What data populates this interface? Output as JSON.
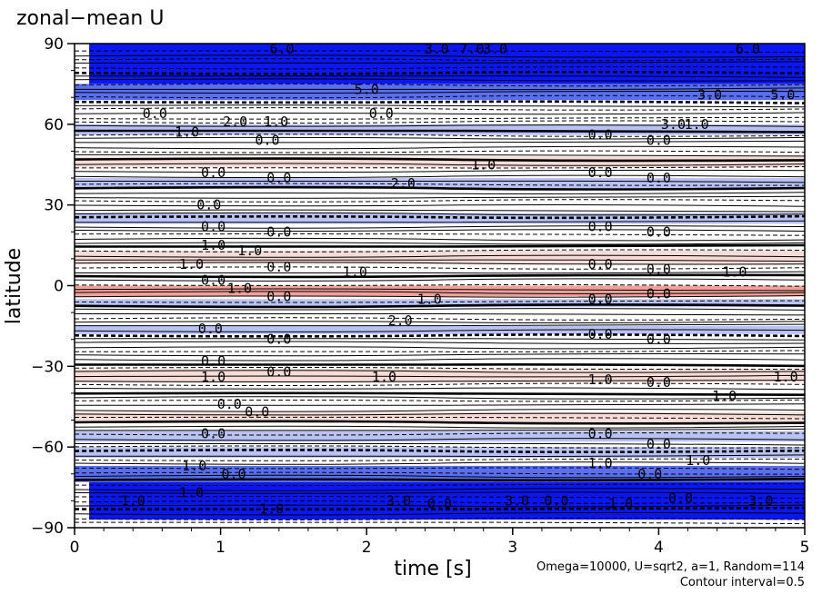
{
  "chart_data": {
    "type": "heatmap",
    "title": "zonal−mean U",
    "xlabel": "time [s]",
    "ylabel": "latitude",
    "xlim": [
      0,
      5
    ],
    "ylim": [
      -90,
      90
    ],
    "x_ticks": [
      "0",
      "1",
      "2",
      "3",
      "4",
      "5"
    ],
    "y_ticks": [
      "−90",
      "−60",
      "−30",
      "0",
      "30",
      "60",
      "90"
    ],
    "x_tick_values": [
      0,
      1,
      2,
      3,
      4,
      5
    ],
    "y_tick_values": [
      -90,
      -60,
      -30,
      0,
      30,
      60,
      90
    ],
    "annotation_params": "Omega=10000, U=sqrt2, a=1, Random=114",
    "annotation_interval": "Contour interval=0.5",
    "grid": false,
    "colors": {
      "strong_negative": "#0a17f2",
      "medium_negative": "#5a6ff0",
      "weak_negative": "#b9c2f4",
      "weak_positive": "#f6dcd6",
      "positive": "#f0a29a",
      "contour": "#000000"
    },
    "bands": [
      {
        "lat": [
          75,
          90
        ],
        "t": [
          0.1,
          5
        ],
        "value": -6.0
      },
      {
        "lat": [
          -87,
          -73
        ],
        "t": [
          0.1,
          5
        ],
        "value": -6.0
      },
      {
        "lat": [
          69,
          75
        ],
        "t": [
          0,
          5
        ],
        "value": -2.0
      },
      {
        "lat": [
          -73,
          -67
        ],
        "t": [
          0,
          5
        ],
        "value": -2.0
      },
      {
        "lat": [
          56,
          60
        ],
        "t": [
          0,
          5
        ],
        "value": -1.0
      },
      {
        "lat": [
          36,
          40
        ],
        "t": [
          0,
          5
        ],
        "value": -1.0
      },
      {
        "lat": [
          -58,
          -54
        ],
        "t": [
          0,
          5
        ],
        "value": -1.0
      },
      {
        "lat": [
          -64,
          -60
        ],
        "t": [
          0,
          5
        ],
        "value": -1.0
      },
      {
        "lat": [
          -8,
          -5
        ],
        "t": [
          0,
          5
        ],
        "value": -1.0
      },
      {
        "lat": [
          8,
          13
        ],
        "t": [
          0,
          5
        ],
        "value": 1.0
      },
      {
        "lat": [
          -4,
          0
        ],
        "t": [
          0,
          5
        ],
        "value": 2.0
      },
      {
        "lat": [
          44,
          48
        ],
        "t": [
          0,
          5
        ],
        "value": 0.5
      },
      {
        "lat": [
          -36,
          -31
        ],
        "t": [
          0,
          5
        ],
        "value": 0.5
      },
      {
        "lat": [
          -51,
          -47
        ],
        "t": [
          0,
          5
        ],
        "value": 0.5
      },
      {
        "lat": [
          23,
          27
        ],
        "t": [
          0,
          5
        ],
        "value": -0.5
      },
      {
        "lat": [
          -18,
          -15
        ],
        "t": [
          0,
          5
        ],
        "value": -0.5
      }
    ],
    "contour_labels": [
      {
        "text": "6.0",
        "t": 1.42,
        "lat": 88
      },
      {
        "text": "3.0",
        "t": 2.48,
        "lat": 88
      },
      {
        "text": "7.0",
        "t": 2.72,
        "lat": 88
      },
      {
        "text": "3.0",
        "t": 2.88,
        "lat": 88
      },
      {
        "text": "6.0",
        "t": 4.61,
        "lat": 88
      },
      {
        "text": "5.0",
        "t": 2.0,
        "lat": 73
      },
      {
        "text": "5.0",
        "t": 4.85,
        "lat": 71
      },
      {
        "text": "3.0",
        "t": 4.35,
        "lat": 71
      },
      {
        "text": "0.0",
        "t": 0.55,
        "lat": 64
      },
      {
        "text": "0.0",
        "t": 2.1,
        "lat": 64
      },
      {
        "text": "2.0",
        "t": 1.1,
        "lat": 61
      },
      {
        "text": "1.0",
        "t": 1.38,
        "lat": 61
      },
      {
        "text": "3.0",
        "t": 4.1,
        "lat": 60
      },
      {
        "text": "1.0",
        "t": 4.26,
        "lat": 60
      },
      {
        "text": "1.0",
        "t": 0.77,
        "lat": 57
      },
      {
        "text": "0.0",
        "t": 1.32,
        "lat": 54
      },
      {
        "text": "0.0",
        "t": 3.6,
        "lat": 56
      },
      {
        "text": "0.0",
        "t": 4.0,
        "lat": 54
      },
      {
        "text": "1.0",
        "t": 2.8,
        "lat": 45
      },
      {
        "text": "0.0",
        "t": 0.95,
        "lat": 42
      },
      {
        "text": "2.0",
        "t": 2.25,
        "lat": 38
      },
      {
        "text": "0.0",
        "t": 1.4,
        "lat": 40
      },
      {
        "text": "0.0",
        "t": 3.6,
        "lat": 42
      },
      {
        "text": "0.0",
        "t": 4.0,
        "lat": 40
      },
      {
        "text": "0.0",
        "t": 0.92,
        "lat": 30
      },
      {
        "text": "0.0",
        "t": 0.95,
        "lat": 22
      },
      {
        "text": "0.0",
        "t": 1.4,
        "lat": 20
      },
      {
        "text": "0.0",
        "t": 3.6,
        "lat": 22
      },
      {
        "text": "0.0",
        "t": 4.0,
        "lat": 20
      },
      {
        "text": "1.0",
        "t": 0.95,
        "lat": 15
      },
      {
        "text": "1.0",
        "t": 1.2,
        "lat": 13
      },
      {
        "text": "1.0",
        "t": 0.8,
        "lat": 8
      },
      {
        "text": "0.0",
        "t": 1.4,
        "lat": 7
      },
      {
        "text": "0.0",
        "t": 3.6,
        "lat": 8
      },
      {
        "text": "0.0",
        "t": 4.0,
        "lat": 6
      },
      {
        "text": "1.0",
        "t": 1.92,
        "lat": 5
      },
      {
        "text": "1.0",
        "t": 4.52,
        "lat": 5
      },
      {
        "text": "0.0",
        "t": 0.95,
        "lat": 2
      },
      {
        "text": "1.0",
        "t": 1.13,
        "lat": -1
      },
      {
        "text": "0.0",
        "t": 1.4,
        "lat": -4
      },
      {
        "text": "1.0",
        "t": 2.43,
        "lat": -5
      },
      {
        "text": "0.0",
        "t": 3.6,
        "lat": -5
      },
      {
        "text": "0.0",
        "t": 4.0,
        "lat": -3
      },
      {
        "text": "2.0",
        "t": 2.23,
        "lat": -13
      },
      {
        "text": "0.0",
        "t": 0.93,
        "lat": -16
      },
      {
        "text": "0.0",
        "t": 1.4,
        "lat": -20
      },
      {
        "text": "0.0",
        "t": 3.6,
        "lat": -18
      },
      {
        "text": "0.0",
        "t": 4.0,
        "lat": -20
      },
      {
        "text": "0.0",
        "t": 0.95,
        "lat": -28
      },
      {
        "text": "1.0",
        "t": 0.95,
        "lat": -34
      },
      {
        "text": "0.0",
        "t": 1.4,
        "lat": -32
      },
      {
        "text": "1.0",
        "t": 2.12,
        "lat": -34
      },
      {
        "text": "1.0",
        "t": 3.6,
        "lat": -35
      },
      {
        "text": "0.0",
        "t": 4.0,
        "lat": -36
      },
      {
        "text": "1.0",
        "t": 4.45,
        "lat": -41
      },
      {
        "text": "1.0",
        "t": 4.87,
        "lat": -34
      },
      {
        "text": "0.0",
        "t": 1.06,
        "lat": -44
      },
      {
        "text": "0.0",
        "t": 1.25,
        "lat": -47
      },
      {
        "text": "0.0",
        "t": 0.95,
        "lat": -55
      },
      {
        "text": "0.0",
        "t": 3.6,
        "lat": -55
      },
      {
        "text": "0.0",
        "t": 4.0,
        "lat": -59
      },
      {
        "text": "1.0",
        "t": 4.27,
        "lat": -65
      },
      {
        "text": "1.0",
        "t": 0.82,
        "lat": -67
      },
      {
        "text": "0.0",
        "t": 1.09,
        "lat": -70
      },
      {
        "text": "1.0",
        "t": 0.8,
        "lat": -77
      },
      {
        "text": "1.0",
        "t": 3.6,
        "lat": -66
      },
      {
        "text": "0.0",
        "t": 3.94,
        "lat": -70
      },
      {
        "text": "1.0",
        "t": 0.4,
        "lat": -80
      },
      {
        "text": "1.0",
        "t": 1.35,
        "lat": -83
      },
      {
        "text": "3.0",
        "t": 2.22,
        "lat": -80
      },
      {
        "text": "0.0",
        "t": 2.5,
        "lat": -81
      },
      {
        "text": "3.0",
        "t": 3.03,
        "lat": -80
      },
      {
        "text": "0.0",
        "t": 3.3,
        "lat": -80
      },
      {
        "text": "1.0",
        "t": 3.74,
        "lat": -81
      },
      {
        "text": "3.0",
        "t": 4.7,
        "lat": -80
      },
      {
        "text": "0.0",
        "t": 4.15,
        "lat": -79
      }
    ]
  }
}
